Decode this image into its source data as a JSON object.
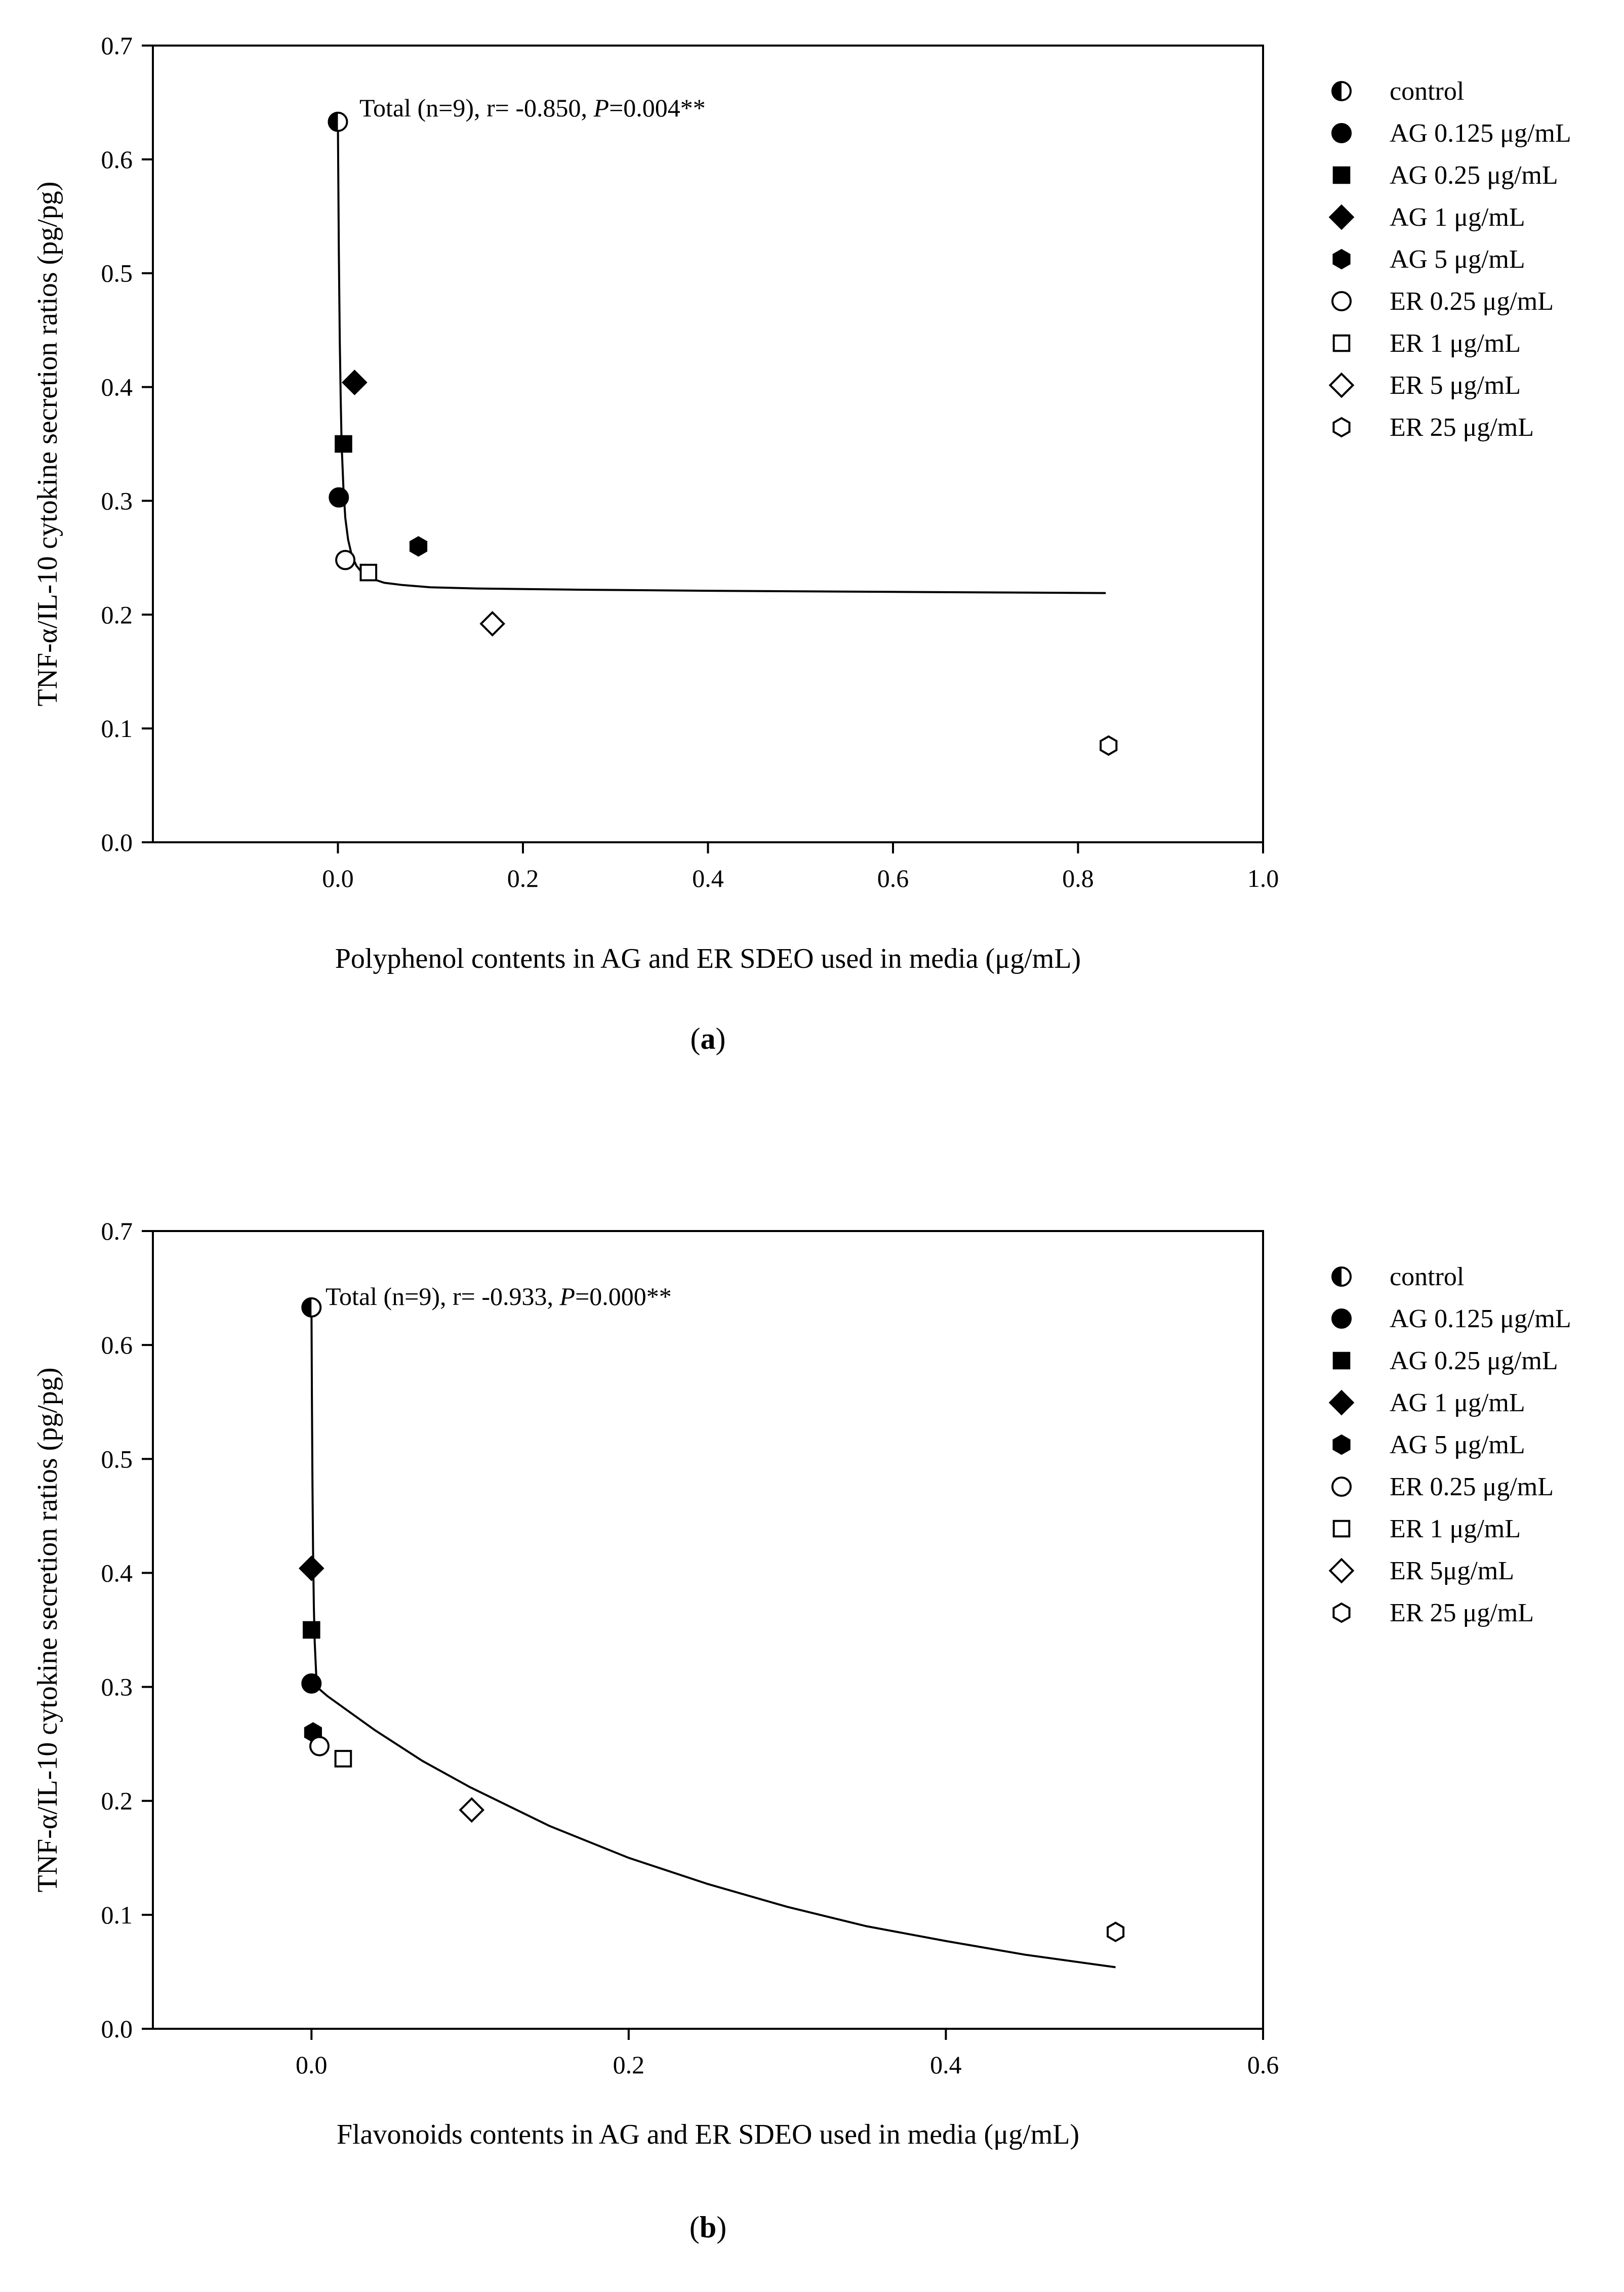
{
  "chart_data": [
    {
      "type": "scatter",
      "panel_label": "a",
      "ylabel": "TNF-α/IL-10 cytokine secretion ratios (pg/pg)",
      "xlabel": "Polyphenol contents in AG and ER SDEO used in media (μg/mL)",
      "xlim": [
        -0.2,
        1.0
      ],
      "ylim": [
        0.0,
        0.7
      ],
      "xticks": [
        "0.0",
        "0.2",
        "0.4",
        "0.6",
        "0.8",
        "1.0"
      ],
      "yticks": [
        "0.0",
        "0.1",
        "0.2",
        "0.3",
        "0.4",
        "0.5",
        "0.6",
        "0.7"
      ],
      "annotation": {
        "prefix": "Total (n=9), r= -0.850, ",
        "p_symbol": "P",
        "p_value": "=0.004**"
      },
      "fit_curve": {
        "x": [
          0.0,
          0.001,
          0.002,
          0.003,
          0.004,
          0.006,
          0.008,
          0.011,
          0.015,
          0.02,
          0.027,
          0.035,
          0.05,
          0.07,
          0.1,
          0.15,
          0.25,
          0.4,
          0.6,
          0.83
        ],
        "y": [
          0.63,
          0.52,
          0.44,
          0.39,
          0.35,
          0.31,
          0.285,
          0.266,
          0.252,
          0.243,
          0.236,
          0.232,
          0.228,
          0.226,
          0.224,
          0.223,
          0.222,
          0.221,
          0.22,
          0.219
        ]
      },
      "series": [
        {
          "name": "control",
          "marker": "half-circle",
          "x": 0.0,
          "y": 0.633
        },
        {
          "name": "AG 0.125 μg/mL",
          "marker": "circle-filled",
          "x": 0.001,
          "y": 0.303
        },
        {
          "name": "AG 0.25 μg/mL",
          "marker": "square-filled",
          "x": 0.006,
          "y": 0.35
        },
        {
          "name": "AG 1 μg/mL",
          "marker": "diamond-filled",
          "x": 0.018,
          "y": 0.404
        },
        {
          "name": "AG 5 μg/mL",
          "marker": "hexagon-filled",
          "x": 0.087,
          "y": 0.26
        },
        {
          "name": "ER 0.25 μg/mL",
          "marker": "circle-open",
          "x": 0.008,
          "y": 0.248
        },
        {
          "name": "ER 1 μg/mL",
          "marker": "square-open",
          "x": 0.033,
          "y": 0.237
        },
        {
          "name": "ER 5 μg/mL",
          "marker": "diamond-open",
          "x": 0.167,
          "y": 0.192
        },
        {
          "name": "ER 25 μg/mL",
          "marker": "hexagon-open",
          "x": 0.833,
          "y": 0.085
        }
      ]
    },
    {
      "type": "scatter",
      "panel_label": "b",
      "ylabel": "TNF-α/IL-10 cytokine secretion ratios (pg/pg)",
      "xlabel": "Flavonoids contents in AG and ER SDEO used in media (μg/mL)",
      "xlim": [
        -0.1,
        0.6
      ],
      "ylim": [
        0.0,
        0.7
      ],
      "xticks": [
        "0.0",
        "0.2",
        "0.4",
        "0.6"
      ],
      "yticks": [
        "0.0",
        "0.1",
        "0.2",
        "0.3",
        "0.4",
        "0.5",
        "0.6",
        "0.7"
      ],
      "annotation": {
        "prefix": "Total (n=9), r= -0.933, ",
        "p_symbol": "P",
        "p_value": "=0.000**"
      },
      "fit_curve": {
        "x": [
          0.0,
          0.0003,
          0.0006,
          0.001,
          0.0015,
          0.002,
          0.003,
          0.005,
          0.01,
          0.02,
          0.04,
          0.07,
          0.1,
          0.15,
          0.2,
          0.25,
          0.3,
          0.35,
          0.4,
          0.45,
          0.507
        ],
        "y": [
          0.63,
          0.55,
          0.48,
          0.42,
          0.37,
          0.34,
          0.31,
          0.298,
          0.292,
          0.282,
          0.262,
          0.235,
          0.212,
          0.178,
          0.15,
          0.127,
          0.107,
          0.09,
          0.077,
          0.065,
          0.054
        ]
      },
      "series": [
        {
          "name": "control",
          "marker": "half-circle",
          "x": 0.0,
          "y": 0.633
        },
        {
          "name": "AG 0.125 μg/mL",
          "marker": "circle-filled",
          "x": 0.0,
          "y": 0.303
        },
        {
          "name": "AG 0.25 μg/mL",
          "marker": "square-filled",
          "x": 0.0,
          "y": 0.35
        },
        {
          "name": "AG 1 μg/mL",
          "marker": "diamond-filled",
          "x": 0.0,
          "y": 0.404
        },
        {
          "name": "AG 5 μg/mL",
          "marker": "hexagon-filled",
          "x": 0.001,
          "y": 0.26
        },
        {
          "name": "ER 0.25 μg/mL",
          "marker": "circle-open",
          "x": 0.005,
          "y": 0.248
        },
        {
          "name": "ER 1 μg/mL",
          "marker": "square-open",
          "x": 0.02,
          "y": 0.237
        },
        {
          "name": "ER 5μg/mL",
          "marker": "diamond-open",
          "x": 0.101,
          "y": 0.192
        },
        {
          "name": "ER 25 μg/mL",
          "marker": "hexagon-open",
          "x": 0.507,
          "y": 0.085
        }
      ]
    }
  ]
}
